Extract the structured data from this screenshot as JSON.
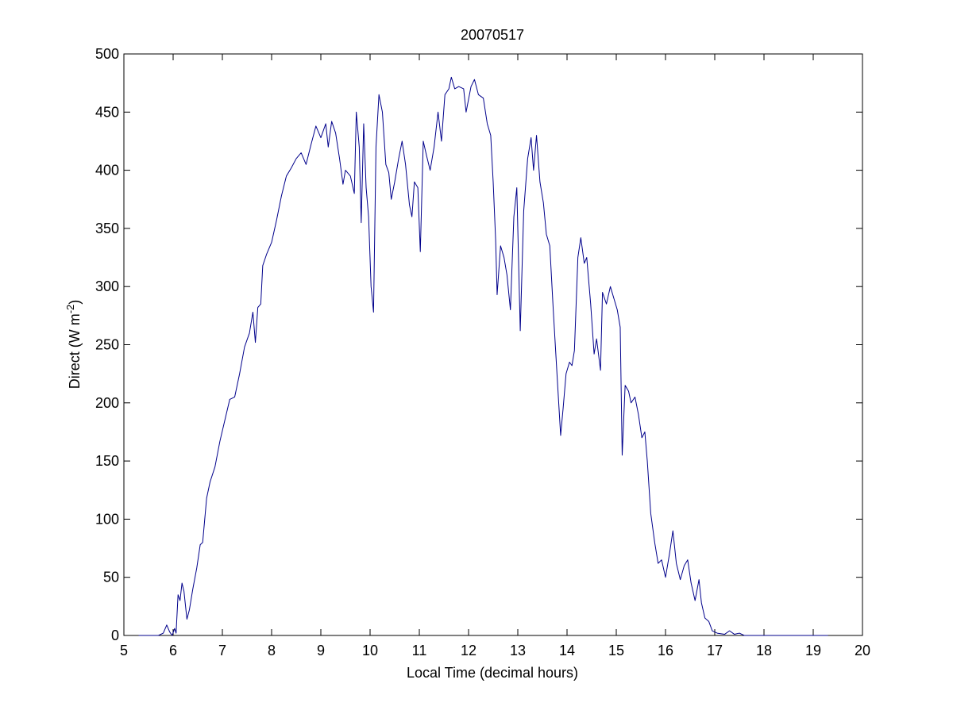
{
  "chart_data": {
    "type": "line",
    "title": "20070517",
    "xlabel": "Local Time (decimal hours)",
    "ylabel": {
      "prefix": "Direct (W m",
      "superscript": "-2",
      "suffix": ")"
    },
    "xlim": [
      5,
      20
    ],
    "ylim": [
      0,
      500
    ],
    "xticks": [
      5,
      6,
      7,
      8,
      9,
      10,
      11,
      12,
      13,
      14,
      15,
      16,
      17,
      18,
      19,
      20
    ],
    "yticks": [
      0,
      50,
      100,
      150,
      200,
      250,
      300,
      350,
      400,
      450,
      500
    ],
    "grid": false,
    "legend": false,
    "box": true,
    "series": [
      {
        "color": "#00008b",
        "points": [
          [
            5.3,
            0
          ],
          [
            5.7,
            0
          ],
          [
            5.8,
            2
          ],
          [
            5.87,
            9
          ],
          [
            5.93,
            3
          ],
          [
            5.98,
            0
          ],
          [
            6.03,
            6
          ],
          [
            6.06,
            2
          ],
          [
            6.1,
            35
          ],
          [
            6.14,
            30
          ],
          [
            6.18,
            45
          ],
          [
            6.22,
            38
          ],
          [
            6.28,
            14
          ],
          [
            6.33,
            22
          ],
          [
            6.4,
            40
          ],
          [
            6.48,
            58
          ],
          [
            6.55,
            78
          ],
          [
            6.6,
            80
          ],
          [
            6.68,
            118
          ],
          [
            6.75,
            132
          ],
          [
            6.85,
            145
          ],
          [
            6.95,
            167
          ],
          [
            7.05,
            185
          ],
          [
            7.15,
            203
          ],
          [
            7.25,
            205
          ],
          [
            7.35,
            225
          ],
          [
            7.45,
            248
          ],
          [
            7.55,
            260
          ],
          [
            7.62,
            278
          ],
          [
            7.67,
            252
          ],
          [
            7.72,
            282
          ],
          [
            7.78,
            285
          ],
          [
            7.82,
            318
          ],
          [
            7.9,
            328
          ],
          [
            8.0,
            338
          ],
          [
            8.1,
            357
          ],
          [
            8.2,
            378
          ],
          [
            8.3,
            395
          ],
          [
            8.4,
            402
          ],
          [
            8.5,
            410
          ],
          [
            8.6,
            415
          ],
          [
            8.7,
            405
          ],
          [
            8.8,
            422
          ],
          [
            8.9,
            438
          ],
          [
            9.0,
            428
          ],
          [
            9.1,
            440
          ],
          [
            9.15,
            420
          ],
          [
            9.22,
            442
          ],
          [
            9.3,
            432
          ],
          [
            9.38,
            410
          ],
          [
            9.45,
            388
          ],
          [
            9.5,
            400
          ],
          [
            9.6,
            395
          ],
          [
            9.68,
            380
          ],
          [
            9.72,
            450
          ],
          [
            9.78,
            420
          ],
          [
            9.82,
            355
          ],
          [
            9.87,
            440
          ],
          [
            9.92,
            385
          ],
          [
            9.97,
            360
          ],
          [
            10.02,
            300
          ],
          [
            10.07,
            278
          ],
          [
            10.12,
            420
          ],
          [
            10.18,
            465
          ],
          [
            10.25,
            450
          ],
          [
            10.32,
            405
          ],
          [
            10.38,
            398
          ],
          [
            10.43,
            375
          ],
          [
            10.5,
            390
          ],
          [
            10.58,
            410
          ],
          [
            10.65,
            425
          ],
          [
            10.72,
            405
          ],
          [
            10.8,
            370
          ],
          [
            10.85,
            360
          ],
          [
            10.9,
            390
          ],
          [
            10.97,
            385
          ],
          [
            11.02,
            330
          ],
          [
            11.08,
            425
          ],
          [
            11.15,
            412
          ],
          [
            11.22,
            400
          ],
          [
            11.3,
            420
          ],
          [
            11.38,
            450
          ],
          [
            11.45,
            425
          ],
          [
            11.52,
            465
          ],
          [
            11.6,
            470
          ],
          [
            11.65,
            480
          ],
          [
            11.72,
            470
          ],
          [
            11.8,
            472
          ],
          [
            11.9,
            470
          ],
          [
            11.95,
            450
          ],
          [
            12.05,
            472
          ],
          [
            12.12,
            478
          ],
          [
            12.2,
            465
          ],
          [
            12.3,
            462
          ],
          [
            12.38,
            440
          ],
          [
            12.45,
            430
          ],
          [
            12.5,
            390
          ],
          [
            12.55,
            340
          ],
          [
            12.58,
            293
          ],
          [
            12.65,
            335
          ],
          [
            12.72,
            325
          ],
          [
            12.78,
            310
          ],
          [
            12.85,
            280
          ],
          [
            12.92,
            360
          ],
          [
            12.98,
            385
          ],
          [
            13.05,
            262
          ],
          [
            13.12,
            365
          ],
          [
            13.2,
            410
          ],
          [
            13.27,
            428
          ],
          [
            13.32,
            400
          ],
          [
            13.38,
            430
          ],
          [
            13.45,
            390
          ],
          [
            13.52,
            372
          ],
          [
            13.58,
            345
          ],
          [
            13.65,
            335
          ],
          [
            13.72,
            280
          ],
          [
            13.8,
            222
          ],
          [
            13.87,
            172
          ],
          [
            13.92,
            195
          ],
          [
            13.98,
            225
          ],
          [
            14.05,
            235
          ],
          [
            14.1,
            232
          ],
          [
            14.15,
            245
          ],
          [
            14.22,
            325
          ],
          [
            14.28,
            342
          ],
          [
            14.35,
            320
          ],
          [
            14.4,
            325
          ],
          [
            14.48,
            285
          ],
          [
            14.55,
            242
          ],
          [
            14.6,
            255
          ],
          [
            14.68,
            228
          ],
          [
            14.72,
            295
          ],
          [
            14.8,
            285
          ],
          [
            14.88,
            300
          ],
          [
            14.95,
            290
          ],
          [
            15.02,
            280
          ],
          [
            15.08,
            265
          ],
          [
            15.12,
            155
          ],
          [
            15.18,
            215
          ],
          [
            15.25,
            210
          ],
          [
            15.3,
            200
          ],
          [
            15.38,
            205
          ],
          [
            15.45,
            190
          ],
          [
            15.52,
            170
          ],
          [
            15.58,
            175
          ],
          [
            15.63,
            150
          ],
          [
            15.7,
            105
          ],
          [
            15.78,
            80
          ],
          [
            15.85,
            62
          ],
          [
            15.92,
            65
          ],
          [
            16.0,
            50
          ],
          [
            16.08,
            70
          ],
          [
            16.15,
            90
          ],
          [
            16.22,
            62
          ],
          [
            16.3,
            48
          ],
          [
            16.38,
            60
          ],
          [
            16.45,
            65
          ],
          [
            16.52,
            45
          ],
          [
            16.6,
            30
          ],
          [
            16.68,
            48
          ],
          [
            16.73,
            28
          ],
          [
            16.8,
            15
          ],
          [
            16.88,
            12
          ],
          [
            16.95,
            4
          ],
          [
            17.05,
            2
          ],
          [
            17.2,
            1
          ],
          [
            17.3,
            4
          ],
          [
            17.4,
            1
          ],
          [
            17.5,
            2
          ],
          [
            17.6,
            0
          ],
          [
            18.0,
            0
          ],
          [
            18.5,
            0
          ],
          [
            19.0,
            0
          ],
          [
            19.3,
            0
          ]
        ]
      }
    ]
  }
}
